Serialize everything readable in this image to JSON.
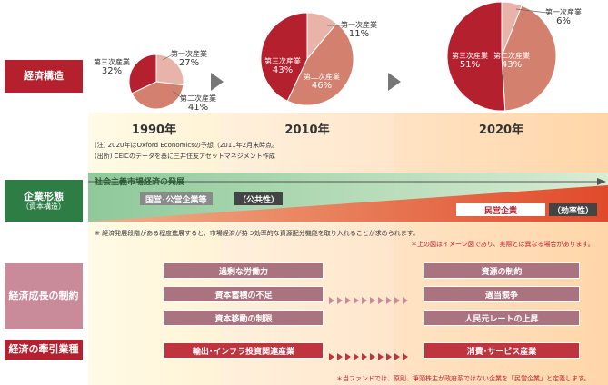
{
  "categories": {
    "economic_structure": "経済構造",
    "enterprise_form": "企業形態",
    "enterprise_form_sub": "（資本構造）",
    "growth_constraints": "経済成長の制約",
    "driving_industry": "経済の牽引業種"
  },
  "years": [
    "1990年",
    "2010年",
    "2020年"
  ],
  "pies": [
    {
      "year": "1990年",
      "slices": [
        {
          "name": "第一次産業",
          "pct": "27%",
          "value": 27,
          "color": "#e8b3a8"
        },
        {
          "name": "第二次産業",
          "pct": "41%",
          "value": 41,
          "color": "#d4806e"
        },
        {
          "name": "第三次産業",
          "pct": "32%",
          "value": 32,
          "color": "#b5202e"
        }
      ]
    },
    {
      "year": "2010年",
      "slices": [
        {
          "name": "第一次産業",
          "pct": "11%",
          "value": 11,
          "color": "#e8b3a8"
        },
        {
          "name": "第二次産業",
          "pct": "46%",
          "value": 46,
          "color": "#d4806e"
        },
        {
          "name": "第三次産業",
          "pct": "43%",
          "value": 43,
          "color": "#b5202e"
        }
      ]
    },
    {
      "year": "2020年",
      "slices": [
        {
          "name": "第一次産業",
          "pct": "6%",
          "value": 6,
          "color": "#e8b3a8"
        },
        {
          "name": "第二次産業",
          "pct": "43%",
          "value": 43,
          "color": "#d4806e"
        },
        {
          "name": "第三次産業",
          "pct": "51%",
          "value": 51,
          "color": "#b5202e"
        }
      ]
    }
  ],
  "notes": {
    "note1": "(注) 2020年はOxford Economicsの予想（2011年2月末時点。",
    "note2": "(出所) CEICのデータを基に三井住友アセットマネジメント作成",
    "market_economy": "社会主義市場経済の発展",
    "public_sector": "国営･公営企業等",
    "public_sector_tag": "（公共性）",
    "private_sector": "民営企業",
    "private_sector_tag": "（効率性）",
    "footnote_main": "※ 経済発展段階がある程度進展すると、市場経済が持つ効率的な資源配分機能を取り入れることが求められます。",
    "footnote_image": "＊上の図はイメージ図であり、実際とは異なる場合があります。",
    "footnote_bottom": "＊当ファンドでは、原則、筆頭株主が政府系ではない企業を「民営企業」と定義します。"
  },
  "constraints_left": [
    "過剰な労働力",
    "資本蓄積の不足",
    "資本移動の制限"
  ],
  "constraints_right": [
    "資源の制約",
    "過当競争",
    "人民元レートの上昇"
  ],
  "industry_left": "輸出･インフラ投資関連産業",
  "industry_right": "消費･サービス産業"
}
